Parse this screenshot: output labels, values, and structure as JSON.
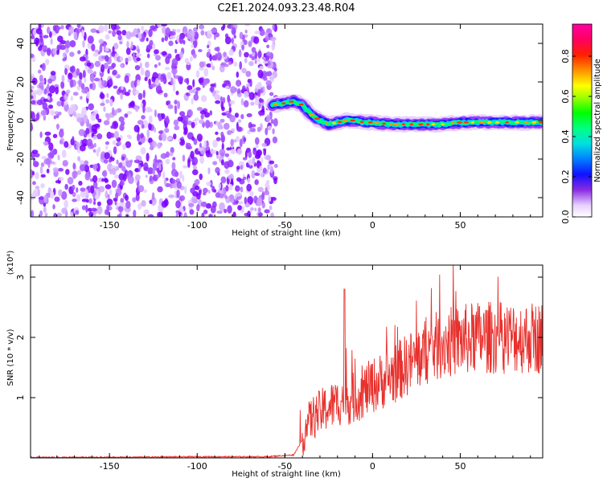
{
  "title": "C2E1.2024.093.23.48.R04",
  "chart_data": [
    {
      "type": "heatmap",
      "xlabel": "Height of straight line (km)",
      "ylabel": "Frequency (Hz)",
      "xlim": [
        -195,
        97
      ],
      "ylim": [
        -50,
        50
      ],
      "x_ticks": [
        -150,
        -100,
        -50,
        0,
        50
      ],
      "y_ticks": [
        -40,
        -20,
        0,
        20,
        40
      ],
      "colorbar": {
        "label": "Normalized spectral amplitude",
        "range": [
          0,
          0.96
        ],
        "ticks": [
          0.0,
          0.2,
          0.4,
          0.6,
          0.8
        ],
        "tick_labels": [
          "0.0",
          "0.2",
          "0.4",
          "0.6",
          "0.8"
        ]
      },
      "noise_region_x": [
        -195,
        -55
      ],
      "signal_track": {
        "x": [
          -57,
          -50,
          -45,
          -40,
          -35,
          -30,
          -25,
          -20,
          -15,
          -10,
          -5,
          0,
          10,
          20,
          30,
          40,
          50,
          60,
          70,
          80,
          90,
          97
        ],
        "y": [
          8,
          9,
          10,
          8,
          3,
          0,
          -2,
          -1,
          0,
          0,
          -1,
          -1,
          -2,
          -2,
          -2,
          -2,
          -1,
          -1,
          -1,
          -1,
          -1,
          -1
        ]
      }
    },
    {
      "type": "line",
      "xlabel": "Height of straight line (km)",
      "ylabel": "SNR (10 * v/v)",
      "y_multiplier_label": "(x10⁴)",
      "xlim": [
        -195,
        97
      ],
      "ylim": [
        0,
        3.2
      ],
      "x_ticks": [
        -150,
        -100,
        -50,
        0,
        50
      ],
      "y_ticks": [
        1,
        2,
        3
      ],
      "color": "#e8302c",
      "x": [
        -195,
        -150,
        -100,
        -60,
        -45,
        -40,
        -38,
        -35,
        -30,
        -25,
        -20,
        -17,
        -15,
        -10,
        -5,
        0,
        10,
        20,
        30,
        40,
        50,
        60,
        70,
        80,
        90,
        97
      ],
      "values": [
        0.01,
        0.01,
        0.02,
        0.02,
        0.05,
        0.3,
        0.5,
        0.65,
        0.75,
        0.85,
        0.9,
        1.0,
        0.95,
        1.0,
        1.1,
        1.2,
        1.35,
        1.55,
        1.75,
        1.9,
        1.95,
        2.0,
        2.0,
        2.0,
        2.0,
        2.0
      ]
    }
  ]
}
